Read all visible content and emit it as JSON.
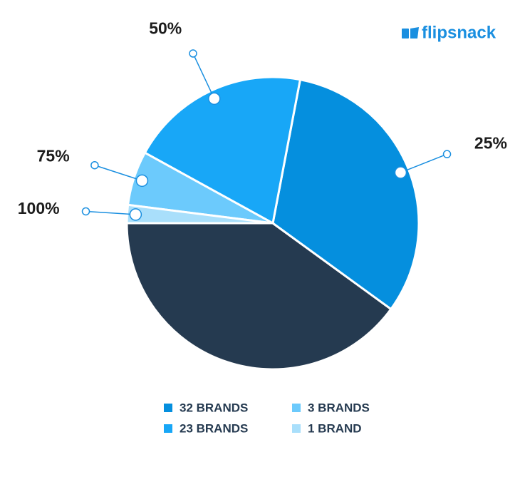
{
  "logo": "flipsnack",
  "chart_data": {
    "type": "pie",
    "categories": [
      null,
      "32 BRANDS",
      "23 BRANDS",
      "3 BRANDS",
      "1 BRAND"
    ],
    "values": [
      40,
      32,
      20,
      6,
      2
    ],
    "colors": [
      "#253a50",
      "#058fde",
      "#18a7f7",
      "#6ccafc",
      "#a9dffb"
    ],
    "callouts": [
      null,
      "25%",
      "50%",
      "75%",
      "100%"
    ]
  }
}
